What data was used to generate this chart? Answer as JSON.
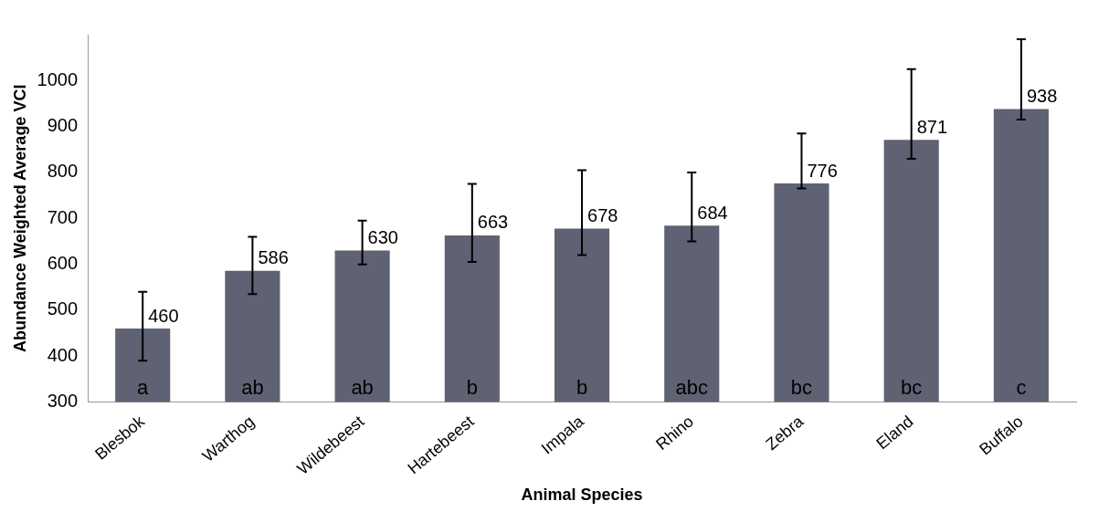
{
  "chart_data": {
    "type": "bar",
    "xlabel": "Animal Species",
    "ylabel": "Abundance Weighted Average VCI",
    "categories": [
      "Blesbok",
      "Warthog",
      "Wildebeest",
      "Hartebeest",
      "Impala",
      "Rhino",
      "Zebra",
      "Eland",
      "Buffalo"
    ],
    "values": [
      460,
      586,
      630,
      663,
      678,
      684,
      776,
      871,
      938
    ],
    "color": "#5f6272",
    "errors": [
      [
        390,
        540
      ],
      [
        535,
        660
      ],
      [
        600,
        695
      ],
      [
        605,
        775
      ],
      [
        620,
        805
      ],
      [
        650,
        800
      ],
      [
        765,
        885
      ],
      [
        830,
        1025
      ],
      [
        915,
        1090
      ]
    ],
    "data_labels": true,
    "ylim": [
      300,
      1100
    ],
    "yticks": [
      300,
      400,
      500,
      600,
      700,
      800,
      900,
      1000
    ],
    "grid": false,
    "legend": false,
    "annotations": [
      "a",
      "ab",
      "ab",
      "b",
      "b",
      "abc",
      "bc",
      "bc",
      "c"
    ]
  }
}
